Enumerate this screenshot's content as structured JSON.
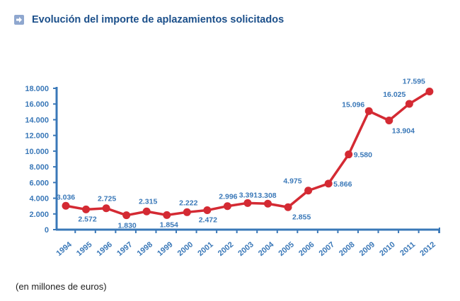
{
  "header": {
    "title": "Evolución del importe de aplazamientos solicitados",
    "icon": "arrow-right-icon"
  },
  "footnote": "(en millones de euros)",
  "colors": {
    "title": "#1b4f8a",
    "axis": "#3a78b8",
    "line": "#d42a33",
    "label": "#3a78b8"
  },
  "chart_data": {
    "type": "line",
    "title": "Evolución del importe de aplazamientos solicitados",
    "xlabel": "",
    "ylabel": "",
    "unit_note": "(en millones de euros)",
    "ylim": [
      0,
      18000
    ],
    "yticks": [
      0,
      2000,
      4000,
      6000,
      8000,
      10000,
      12000,
      14000,
      16000,
      18000
    ],
    "ytick_labels": [
      "0",
      "2.000",
      "4.000",
      "6.000",
      "8.000",
      "10.000",
      "12.000",
      "14.000",
      "16.000",
      "18.000"
    ],
    "categories": [
      "1994",
      "1995",
      "1996",
      "1997",
      "1998",
      "1999",
      "2000",
      "2001",
      "2002",
      "2003",
      "2004",
      "2005",
      "2006",
      "2007",
      "2008",
      "2009",
      "2010",
      "2011",
      "2012"
    ],
    "series": [
      {
        "name": "Importe de aplazamientos solicitados",
        "values": [
          3036,
          2572,
          2725,
          1830,
          2315,
          1854,
          2222,
          2472,
          2996,
          3391,
          3308,
          2855,
          4975,
          5866,
          9580,
          15096,
          13904,
          16025,
          17595
        ],
        "labels": [
          "3.036",
          "2.572",
          "2.725",
          "1.830",
          "2.315",
          "1.854",
          "2.222",
          "2.472",
          "2.996",
          "3.391",
          "3.308",
          "2.855",
          "4.975",
          "5.866",
          "9.580",
          "15.096",
          "13.904",
          "16.025",
          "17.595"
        ]
      }
    ],
    "grid": false,
    "legend": "none"
  }
}
